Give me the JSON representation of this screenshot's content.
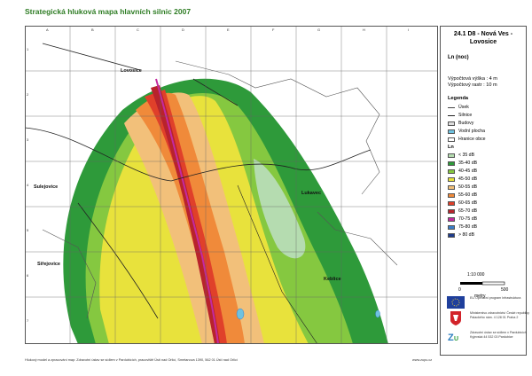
{
  "title": "Strategická hluková mapa hlavních silnic 2007",
  "grid": {
    "columns": [
      "A",
      "B",
      "C",
      "D",
      "E",
      "F",
      "G",
      "H",
      "I"
    ],
    "rows": [
      "1",
      "2",
      "3",
      "4",
      "5",
      "6",
      "7"
    ]
  },
  "places": {
    "lovosice": "Lovosice",
    "sulejovice": "Sulejovice",
    "sitejovice": "Siřejovice",
    "lukavec": "Lukavec",
    "keblice": "Keblice"
  },
  "sidebar": {
    "heading": "24.1  D8 - Nová Ves - Lovosice",
    "indicator": "Ln (noc)",
    "calc_height": "Výpočtová výška  :  4 m",
    "calc_grid": "Výpočtový rastr  :  10 m",
    "legend_title": "Legenda",
    "legend_lines": [
      "Úsek",
      "Silnice",
      "Budovy",
      "Vodní plocha",
      "Hranice obce"
    ],
    "noise_title": "Ln",
    "noise_classes": [
      {
        "label": "< 35 dB",
        "color": "#b5dcb0"
      },
      {
        "label": "35-40 dB",
        "color": "#2e9a3a"
      },
      {
        "label": "40-45 dB",
        "color": "#85c840"
      },
      {
        "label": "45-50 dB",
        "color": "#e8e23c"
      },
      {
        "label": "50-55 dB",
        "color": "#f2c07a"
      },
      {
        "label": "55-60 dB",
        "color": "#f08a3a"
      },
      {
        "label": "60-65 dB",
        "color": "#e0402a"
      },
      {
        "label": "65-70 dB",
        "color": "#b8232c"
      },
      {
        "label": "70-75 dB",
        "color": "#c42aa0"
      },
      {
        "label": "75-80 dB",
        "color": "#3a7dc8"
      },
      {
        "label": "> 80 dB",
        "color": "#1e3c8c"
      }
    ],
    "scale_text": "1:10 000",
    "scale_start": "0",
    "scale_end": "500",
    "scale_unit": "metry",
    "eu_text": "EU Operační program Infrastruktura",
    "ministry_text": "Ministerstvo zdravotnictví České republiky Palackého nám. 4 128 01 Praha 2",
    "institute_text": "Zdravotní ústav se sídlem v Pardubicích Kyjevská 44 532 03 Pardubice"
  },
  "footer": {
    "credit": "Hlukový model a zpracování map: Zdravotní ústav se sídlem v Pardubicích, pracoviště Ústí nad Orlicí, Smetanova 1390, 562 01 Ústí nad Orlicí",
    "url": "www.zupu.cz"
  }
}
